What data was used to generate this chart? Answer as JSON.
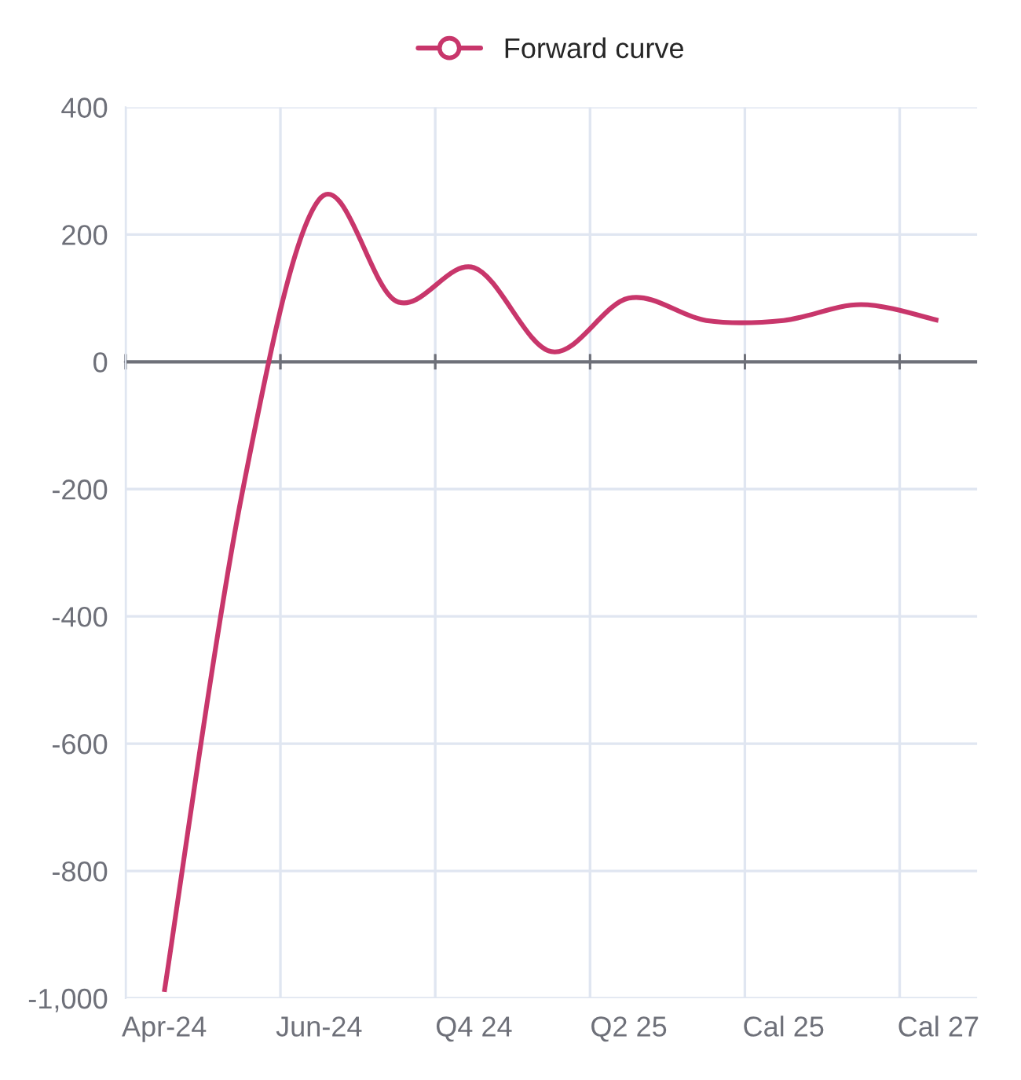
{
  "chart_data": {
    "type": "line",
    "categories": [
      "Apr-24",
      null,
      "Jun-24",
      null,
      "Q4 24",
      null,
      "Q2 25",
      null,
      "Cal 25",
      null,
      "Cal 27"
    ],
    "series": [
      {
        "name": "Forward curve",
        "color": "#c8366b",
        "values": [
          -990,
          -210,
          255,
          95,
          148,
          16,
          100,
          65,
          65,
          90,
          65
        ]
      }
    ],
    "ylim": [
      -1000,
      400
    ],
    "yticks": [
      {
        "value": -1000,
        "label": "-1,000"
      },
      -800,
      -600,
      -400,
      -200,
      0,
      200,
      400
    ],
    "grid": true,
    "legend": "top",
    "marker": "none",
    "line_style": "solid"
  }
}
